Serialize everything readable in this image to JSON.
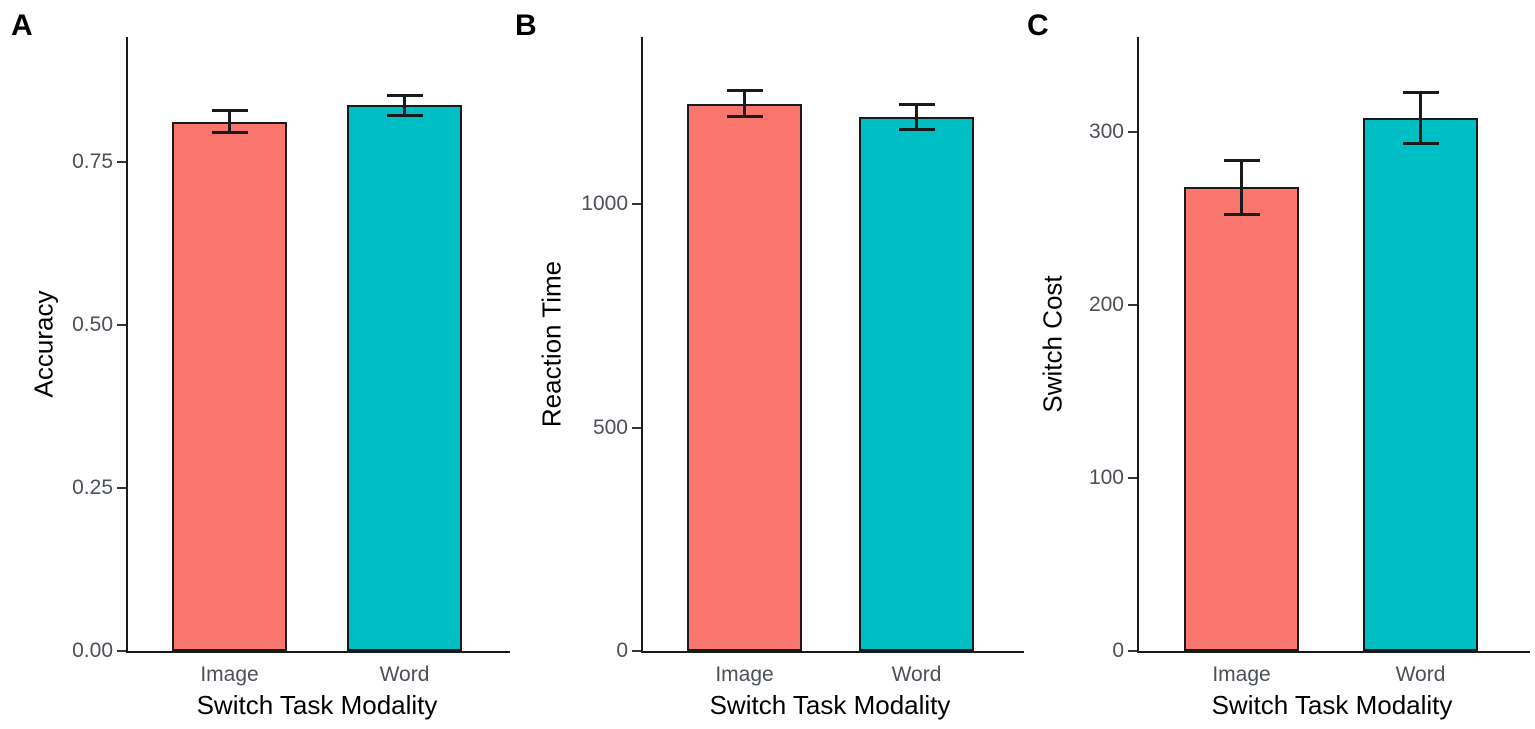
{
  "figure": {
    "background_color": "#ffffff",
    "axis_line_color": "#1a1a1a",
    "tick_text_color": "#4c5057",
    "description": "Three-panel bar figure comparing Image vs Word switch task modality"
  },
  "chart_data": [
    {
      "type": "bar",
      "panel": "A",
      "title": "",
      "xlabel": "Switch Task Modality",
      "ylabel": "Accuracy",
      "categories": [
        "Image",
        "Word"
      ],
      "values": [
        0.812,
        0.837
      ],
      "errors": [
        0.018,
        0.016
      ],
      "error_bar_style": "plus-minus caps",
      "y_tick_values": [
        0,
        0.25,
        0.5,
        0.75
      ],
      "y_ticks": [
        "0.00",
        "0.25",
        "0.50",
        "0.75"
      ],
      "ylim": [
        0,
        0.94
      ],
      "grid": false,
      "legend": "none",
      "bar_colors": [
        "#F8766D",
        "#00BFC4"
      ]
    },
    {
      "type": "bar",
      "panel": "B",
      "title": "",
      "xlabel": "Switch Task Modality",
      "ylabel": "Reaction Time",
      "categories": [
        "Image",
        "Word"
      ],
      "values": [
        1224,
        1194
      ],
      "errors": [
        30,
        29
      ],
      "error_bar_style": "plus-minus caps",
      "y_tick_values": [
        0,
        500,
        1000
      ],
      "y_ticks": [
        "0",
        "500",
        "1000"
      ],
      "ylim": [
        0,
        1375
      ],
      "grid": false,
      "legend": "none",
      "bar_colors": [
        "#F8766D",
        "#00BFC4"
      ]
    },
    {
      "type": "bar",
      "panel": "C",
      "title": "",
      "xlabel": "Switch Task Modality",
      "ylabel": "Switch Cost",
      "categories": [
        "Image",
        "Word"
      ],
      "values": [
        268,
        308
      ],
      "errors": [
        16,
        15
      ],
      "error_bar_style": "plus-minus caps",
      "y_tick_values": [
        0,
        100,
        200,
        300
      ],
      "y_ticks": [
        "0",
        "100",
        "200",
        "300"
      ],
      "ylim": [
        0,
        355
      ],
      "grid": false,
      "legend": "none",
      "bar_colors": [
        "#F8766D",
        "#00BFC4"
      ]
    }
  ]
}
